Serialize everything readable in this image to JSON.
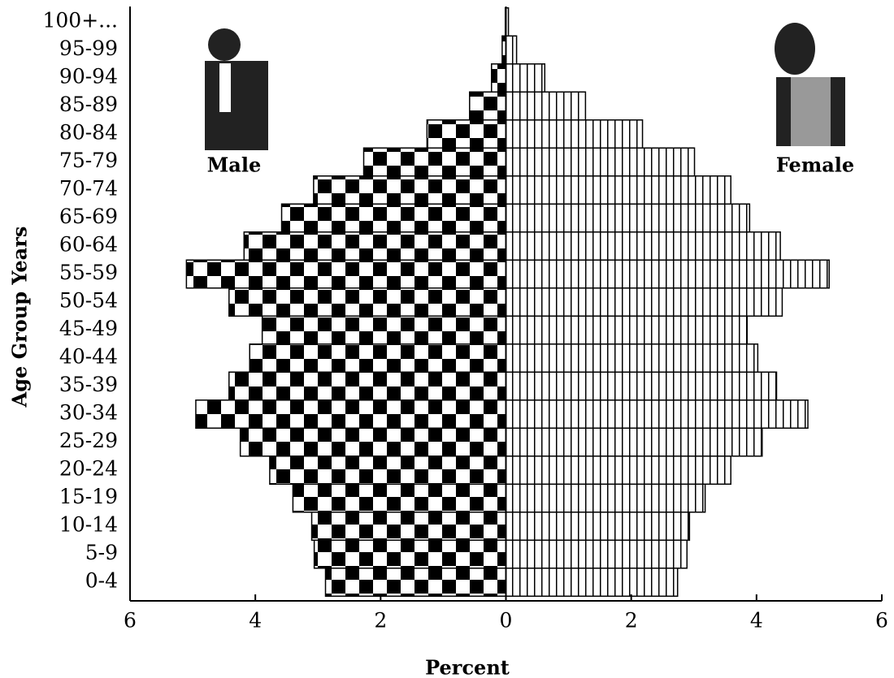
{
  "chart_data": {
    "type": "pyramid",
    "x_label": "Percent",
    "y_label": "Age Group Years",
    "categories": [
      "0-4",
      "5-9",
      "10-14",
      "15-19",
      "20-24",
      "25-29",
      "30-34",
      "35-39",
      "40-44",
      "45-49",
      "50-54",
      "55-59",
      "60-64",
      "65-69",
      "70-74",
      "75-79",
      "80-84",
      "85-89",
      "90-94",
      "95-99",
      "100+..."
    ],
    "series": [
      {
        "name": "Male",
        "color": "#000000",
        "values": [
          -2.88,
          -3.06,
          -3.1,
          -3.4,
          -3.77,
          -4.24,
          -4.95,
          -4.42,
          -4.09,
          -3.89,
          -4.42,
          -5.1,
          -4.18,
          -3.58,
          -3.07,
          -2.27,
          -1.26,
          -0.58,
          -0.23,
          -0.06,
          -0.01
        ]
      },
      {
        "name": "Female",
        "color": "#000000",
        "values": [
          2.74,
          2.89,
          2.93,
          3.18,
          3.59,
          4.09,
          4.82,
          4.32,
          4.02,
          3.85,
          4.41,
          5.16,
          4.38,
          3.89,
          3.59,
          3.01,
          2.18,
          1.27,
          0.62,
          0.17,
          0.04
        ]
      }
    ],
    "xlim": [
      -6,
      6
    ],
    "xticks": [
      {
        "value": -6,
        "label": "6"
      },
      {
        "value": -4,
        "label": "4"
      },
      {
        "value": -2,
        "label": "2"
      },
      0,
      2,
      4,
      6
    ]
  }
}
